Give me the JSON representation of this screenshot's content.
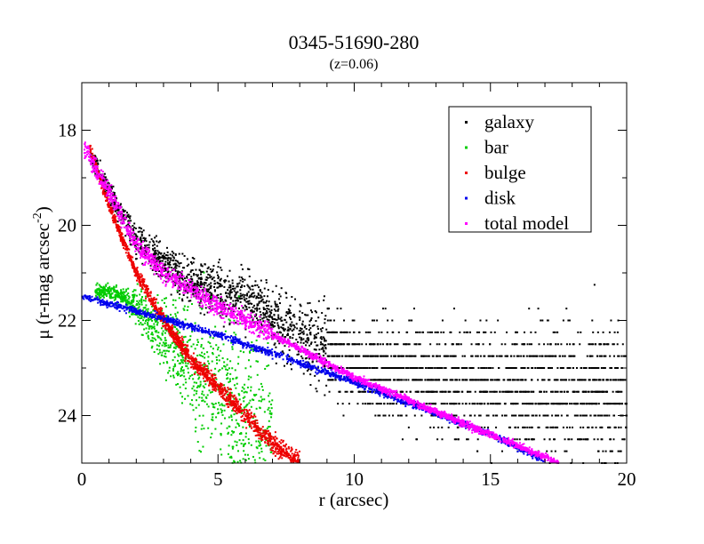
{
  "chart_data": {
    "type": "scatter",
    "title": "0345-51690-280",
    "subtitle": "(z=0.06)",
    "xlabel": "r (arcsec)",
    "ylabel": {
      "symbol": "μ",
      "text": " (r-mag arcsec",
      "superscript": "-2",
      "close": ")"
    },
    "xlim": [
      0,
      20
    ],
    "ylim": [
      25.0,
      17.0
    ],
    "y_inverted": true,
    "x_ticks": [
      "0",
      "5",
      "10",
      "15",
      "20"
    ],
    "y_ticks": [
      "18",
      "20",
      "22",
      "24"
    ],
    "grid": false,
    "legend_position": "top-right",
    "series": [
      {
        "name": "galaxy",
        "color": "#000000",
        "description_points": [
          {
            "x": 0.3,
            "y": 18.5
          },
          {
            "x": 1.0,
            "y": 19.3
          },
          {
            "x": 2.0,
            "y": 20.3
          },
          {
            "x": 3.0,
            "y": 20.8
          },
          {
            "x": 4.0,
            "y": 21.2
          },
          {
            "x": 5.0,
            "y": 21.4
          },
          {
            "x": 6.0,
            "y": 21.6
          },
          {
            "x": 8.0,
            "y": 22.4
          },
          {
            "x": 10.0,
            "y": 22.9
          },
          {
            "x": 12.0,
            "y": 23.2
          },
          {
            "x": 15.0,
            "y": 23.4
          },
          {
            "x": 20.0,
            "y": 23.6
          }
        ]
      },
      {
        "name": "bar",
        "color": "#00cc00",
        "description_points": [
          {
            "x": 0.5,
            "y": 21.4
          },
          {
            "x": 1.0,
            "y": 21.4
          },
          {
            "x": 1.5,
            "y": 21.5
          },
          {
            "x": 2.0,
            "y": 21.7
          },
          {
            "x": 3.0,
            "y": 22.3
          },
          {
            "x": 4.0,
            "y": 23.0
          },
          {
            "x": 5.0,
            "y": 23.5
          },
          {
            "x": 6.0,
            "y": 24.2
          },
          {
            "x": 7.0,
            "y": 24.8
          }
        ]
      },
      {
        "name": "bulge",
        "color": "#ee0000",
        "description_points": [
          {
            "x": 0.3,
            "y": 18.4
          },
          {
            "x": 1.0,
            "y": 19.6
          },
          {
            "x": 2.0,
            "y": 21.0
          },
          {
            "x": 3.0,
            "y": 22.0
          },
          {
            "x": 4.0,
            "y": 22.8
          },
          {
            "x": 5.0,
            "y": 23.4
          },
          {
            "x": 6.0,
            "y": 24.0
          },
          {
            "x": 7.0,
            "y": 24.6
          },
          {
            "x": 8.0,
            "y": 25.0
          }
        ]
      },
      {
        "name": "disk",
        "color": "#0000ee",
        "description_points": [
          {
            "x": 0.0,
            "y": 21.5
          },
          {
            "x": 2.0,
            "y": 21.8
          },
          {
            "x": 5.0,
            "y": 22.3
          },
          {
            "x": 10.0,
            "y": 23.3
          },
          {
            "x": 15.0,
            "y": 24.4
          },
          {
            "x": 17.0,
            "y": 24.95
          }
        ]
      },
      {
        "name": "total model",
        "color": "#ff00ff",
        "description_points": [
          {
            "x": 0.1,
            "y": 18.4
          },
          {
            "x": 1.0,
            "y": 19.3
          },
          {
            "x": 2.0,
            "y": 20.4
          },
          {
            "x": 3.0,
            "y": 21.0
          },
          {
            "x": 5.0,
            "y": 21.7
          },
          {
            "x": 7.0,
            "y": 22.3
          },
          {
            "x": 10.0,
            "y": 23.2
          },
          {
            "x": 15.0,
            "y": 24.4
          },
          {
            "x": 17.5,
            "y": 25.0
          }
        ]
      }
    ]
  }
}
